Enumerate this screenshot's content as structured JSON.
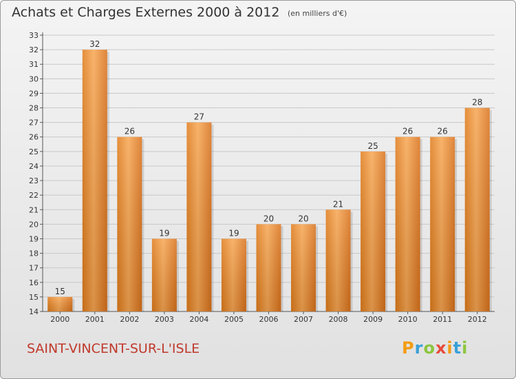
{
  "title": "Achats et Charges Externes 2000 à 2012",
  "unit_label": "(en milliers d'€)",
  "commune": "SAINT-VINCENT-SUR-L'ISLE",
  "logo": {
    "letters": [
      "P",
      "r",
      "o",
      "x",
      "i",
      "t",
      "i"
    ],
    "colors": [
      "#f39c12",
      "#3aa0d8",
      "#8cc63f",
      "#e74c3c",
      "#f39c12",
      "#3aa0d8",
      "#8cc63f"
    ],
    "name": "Proxiti"
  },
  "colors": {
    "bar": "#f08a24",
    "bar_light": "#f7a85a",
    "grid": "#c8c8c8",
    "commune": "#c0392b"
  },
  "chart_data": {
    "type": "bar",
    "categories": [
      "2000",
      "2001",
      "2002",
      "2003",
      "2004",
      "2005",
      "2006",
      "2007",
      "2008",
      "2009",
      "2010",
      "2011",
      "2012"
    ],
    "values": [
      15,
      32,
      26,
      19,
      27,
      19,
      20,
      20,
      21,
      25,
      26,
      26,
      28
    ],
    "ylim": [
      14,
      33
    ],
    "yticks": [
      14,
      15,
      16,
      17,
      18,
      19,
      20,
      21,
      22,
      23,
      24,
      25,
      26,
      27,
      28,
      29,
      30,
      31,
      32,
      33
    ],
    "grid": true,
    "title": "Achats et Charges Externes 2000 à 2012",
    "xlabel": "",
    "ylabel": ""
  }
}
